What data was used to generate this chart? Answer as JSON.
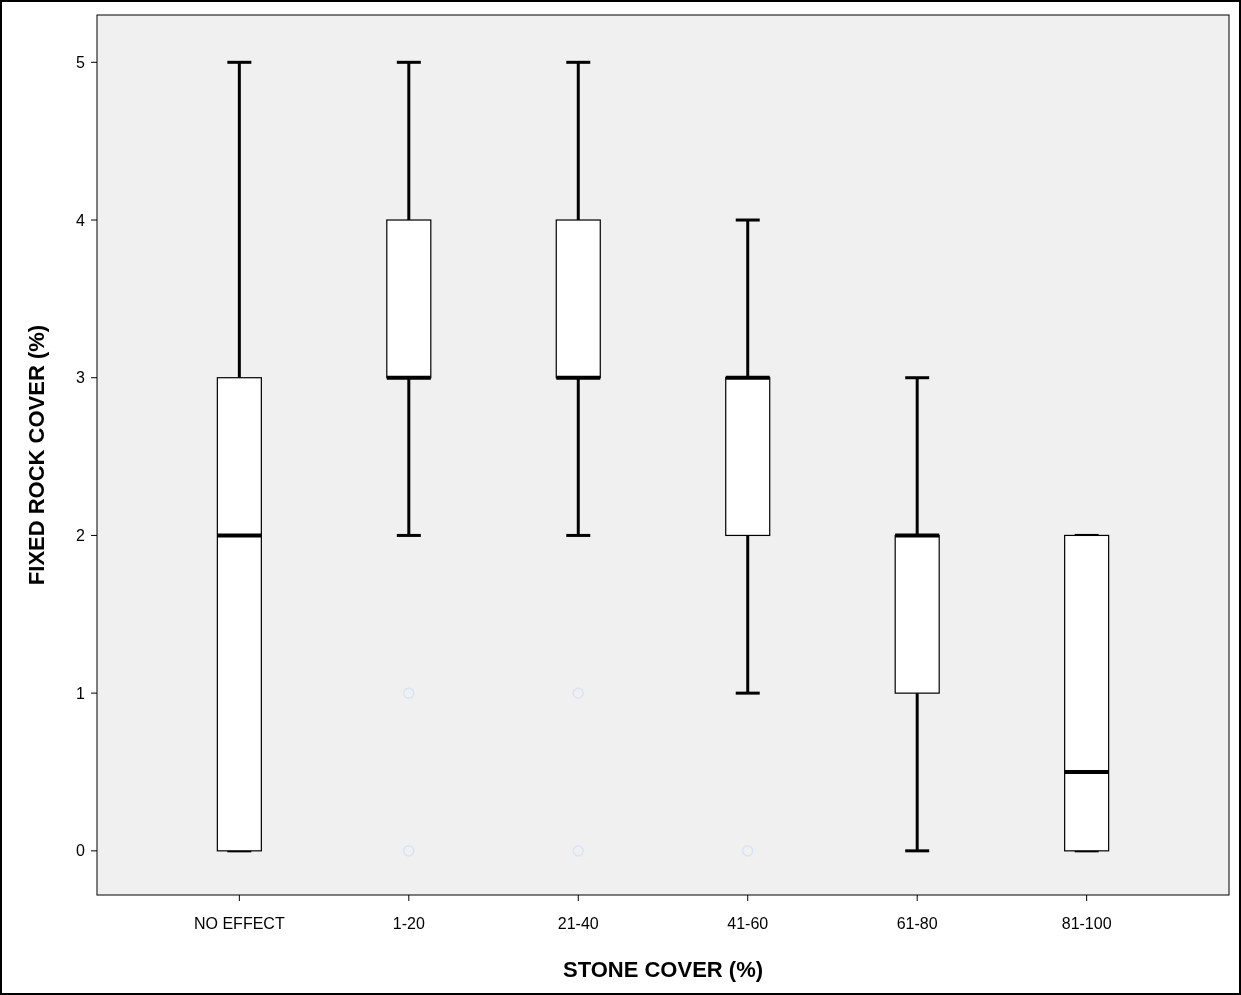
{
  "chart_data": {
    "type": "box",
    "xlabel": "STONE COVER (%)",
    "ylabel": "FIXED ROCK COVER (%)",
    "categories": [
      "NO EFFECT",
      "1-20",
      "21-40",
      "41-60",
      "61-80",
      "81-100"
    ],
    "boxes": [
      {
        "low": 0,
        "q1": 0,
        "median": 2,
        "q3": 3,
        "high": 5
      },
      {
        "low": 2,
        "q1": 3,
        "median": 3,
        "q3": 4,
        "high": 5,
        "outliers": [
          1,
          0
        ]
      },
      {
        "low": 2,
        "q1": 3,
        "median": 3,
        "q3": 4,
        "high": 5,
        "outliers": [
          1,
          0
        ]
      },
      {
        "low": 1,
        "q1": 2,
        "median": 3,
        "q3": 3,
        "high": 4,
        "outliers": [
          0
        ]
      },
      {
        "low": 0,
        "q1": 1,
        "median": 2,
        "q3": 2,
        "high": 3
      },
      {
        "low": 0,
        "q1": 0,
        "median": 0.5,
        "q3": 2,
        "high": 2
      }
    ],
    "color": "#ffffff",
    "ylim": [
      -0.28,
      5.3
    ],
    "yticks": [
      0,
      1,
      2,
      3,
      4,
      5
    ],
    "grid": false
  }
}
